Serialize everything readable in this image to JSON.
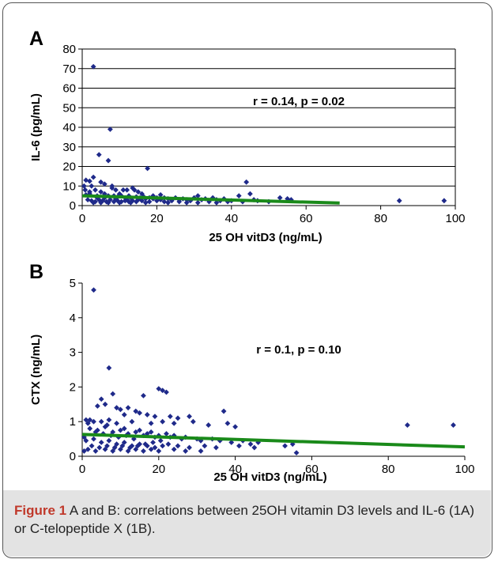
{
  "chart_data": [
    {
      "type": "scatter",
      "panel": "A",
      "xlabel": "25 OH vitD3  (ng/mL)",
      "ylabel": "IL-6 (pg/mL)",
      "xlim": [
        0,
        100
      ],
      "ylim": [
        0,
        80
      ],
      "xticks": [
        0,
        20,
        40,
        60,
        80,
        100
      ],
      "yticks": [
        0,
        10,
        20,
        30,
        40,
        50,
        60,
        70,
        80
      ],
      "grid": "horizontal",
      "annotation": "r = 0.14, p = 0.02",
      "marker_color": "#1f2a8a",
      "trend_color": "#1a8a1a",
      "trendline": {
        "x": [
          0,
          69
        ],
        "y": [
          5,
          1.3
        ]
      },
      "points": [
        [
          3,
          71
        ],
        [
          7.5,
          39
        ],
        [
          4.5,
          26
        ],
        [
          7,
          23
        ],
        [
          17.5,
          19
        ],
        [
          3,
          14.5
        ],
        [
          1,
          13
        ],
        [
          2,
          12.5
        ],
        [
          5,
          12
        ],
        [
          6,
          11
        ],
        [
          44,
          12
        ],
        [
          0.5,
          10
        ],
        [
          2.5,
          10
        ],
        [
          8,
          10
        ],
        [
          13.5,
          9
        ],
        [
          8,
          9
        ],
        [
          11,
          8
        ],
        [
          12,
          8
        ],
        [
          14,
          8
        ],
        [
          3.5,
          8
        ],
        [
          9,
          8
        ],
        [
          5,
          7
        ],
        [
          6,
          6
        ],
        [
          10,
          6
        ],
        [
          15,
          7
        ],
        [
          16,
          6
        ],
        [
          2,
          6
        ],
        [
          1,
          5.5
        ],
        [
          4,
          5
        ],
        [
          7,
          5
        ],
        [
          8.5,
          5
        ],
        [
          9.5,
          4.5
        ],
        [
          10.5,
          5
        ],
        [
          11.5,
          4
        ],
        [
          12.5,
          5
        ],
        [
          13,
          4
        ],
        [
          14.5,
          4.5
        ],
        [
          15.5,
          4
        ],
        [
          16.5,
          4.5
        ],
        [
          17,
          3.5
        ],
        [
          18,
          4
        ],
        [
          19,
          3.5
        ],
        [
          20,
          4
        ],
        [
          21,
          3
        ],
        [
          22,
          4
        ],
        [
          23,
          3.5
        ],
        [
          24,
          3
        ],
        [
          25,
          4
        ],
        [
          26,
          3
        ],
        [
          27,
          3.5
        ],
        [
          28,
          3
        ],
        [
          30,
          4
        ],
        [
          31,
          5
        ],
        [
          32,
          3
        ],
        [
          33,
          3.5
        ],
        [
          35,
          4
        ],
        [
          36,
          3
        ],
        [
          38,
          3.5
        ],
        [
          40,
          2.5
        ],
        [
          42,
          5
        ],
        [
          45,
          6
        ],
        [
          46,
          3
        ],
        [
          53,
          4
        ],
        [
          55,
          3.5
        ],
        [
          56,
          3
        ],
        [
          85,
          2.5
        ],
        [
          97,
          2.5
        ],
        [
          1.5,
          3
        ],
        [
          2.5,
          2.5
        ],
        [
          3.5,
          2
        ],
        [
          4.5,
          3
        ],
        [
          5.5,
          2.5
        ],
        [
          6.5,
          2
        ],
        [
          7.5,
          3
        ],
        [
          8.5,
          2
        ],
        [
          9.5,
          2.5
        ],
        [
          10.5,
          2
        ],
        [
          11.5,
          2.5
        ],
        [
          12.5,
          2
        ],
        [
          13.5,
          2.5
        ],
        [
          14.5,
          2
        ],
        [
          16,
          2.5
        ],
        [
          18,
          2
        ],
        [
          20,
          2.5
        ],
        [
          22,
          2
        ],
        [
          24,
          2.5
        ],
        [
          26,
          2
        ],
        [
          29,
          2.5
        ],
        [
          34,
          2
        ],
        [
          37,
          2.5
        ],
        [
          39,
          2
        ],
        [
          43,
          2
        ],
        [
          47,
          2.5
        ],
        [
          50,
          2
        ],
        [
          6,
          4
        ],
        [
          9,
          3.5
        ],
        [
          12,
          3
        ],
        [
          15,
          3
        ],
        [
          19,
          5
        ],
        [
          21,
          5.5
        ],
        [
          4,
          4
        ],
        [
          0.8,
          8
        ],
        [
          2,
          7
        ],
        [
          3,
          1.5
        ],
        [
          5,
          1.5
        ],
        [
          7,
          1.5
        ],
        [
          10,
          1.5
        ],
        [
          13,
          1.5
        ],
        [
          17,
          1.5
        ],
        [
          23,
          1.5
        ],
        [
          28,
          1.5
        ],
        [
          31,
          1.5
        ],
        [
          36,
          1.5
        ]
      ]
    },
    {
      "type": "scatter",
      "panel": "B",
      "xlabel": "25 OH vitD3  (ng/mL)",
      "ylabel": "CTX (ng/mL)",
      "xlim": [
        0,
        100
      ],
      "ylim": [
        0,
        5
      ],
      "xticks": [
        0,
        20,
        40,
        60,
        80,
        100
      ],
      "yticks": [
        0,
        1,
        2,
        3,
        4,
        5
      ],
      "grid": "none",
      "annotation": "r = 0.1, p = 0.10",
      "marker_color": "#1f2a8a",
      "trend_color": "#1a8a1a",
      "trendline": {
        "x": [
          0,
          100
        ],
        "y": [
          0.63,
          0.27
        ]
      },
      "points": [
        [
          3,
          4.8
        ],
        [
          7,
          2.55
        ],
        [
          20,
          1.95
        ],
        [
          21,
          1.9
        ],
        [
          22,
          1.85
        ],
        [
          8,
          1.8
        ],
        [
          16,
          1.75
        ],
        [
          5,
          1.65
        ],
        [
          6,
          1.5
        ],
        [
          4,
          1.45
        ],
        [
          9,
          1.4
        ],
        [
          10,
          1.35
        ],
        [
          12,
          1.4
        ],
        [
          14,
          1.3
        ],
        [
          37,
          1.3
        ],
        [
          15,
          1.25
        ],
        [
          11,
          1.2
        ],
        [
          17,
          1.2
        ],
        [
          19,
          1.15
        ],
        [
          23,
          1.15
        ],
        [
          25,
          1.1
        ],
        [
          28,
          1.15
        ],
        [
          1,
          1.05
        ],
        [
          2,
          1.05
        ],
        [
          3,
          1.0
        ],
        [
          5,
          1.0
        ],
        [
          7,
          1.05
        ],
        [
          9,
          0.95
        ],
        [
          13,
          1.0
        ],
        [
          18,
          0.95
        ],
        [
          21,
          1.0
        ],
        [
          24,
          0.95
        ],
        [
          29,
          1.0
        ],
        [
          33,
          0.9
        ],
        [
          38,
          0.95
        ],
        [
          40,
          0.85
        ],
        [
          85,
          0.9
        ],
        [
          97,
          0.9
        ],
        [
          2,
          0.8
        ],
        [
          4,
          0.75
        ],
        [
          6,
          0.85
        ],
        [
          8,
          0.7
        ],
        [
          10,
          0.75
        ],
        [
          11,
          0.8
        ],
        [
          12,
          0.65
        ],
        [
          14,
          0.7
        ],
        [
          15,
          0.75
        ],
        [
          16,
          0.6
        ],
        [
          17,
          0.65
        ],
        [
          18,
          0.7
        ],
        [
          19,
          0.55
        ],
        [
          20,
          0.6
        ],
        [
          22,
          0.65
        ],
        [
          23,
          0.55
        ],
        [
          24,
          0.6
        ],
        [
          26,
          0.5
        ],
        [
          27,
          0.55
        ],
        [
          30,
          0.5
        ],
        [
          31,
          0.45
        ],
        [
          34,
          0.5
        ],
        [
          36,
          0.45
        ],
        [
          39,
          0.4
        ],
        [
          42,
          0.45
        ],
        [
          44,
          0.35
        ],
        [
          46,
          0.4
        ],
        [
          0.5,
          0.55
        ],
        [
          1,
          0.45
        ],
        [
          3,
          0.5
        ],
        [
          5,
          0.4
        ],
        [
          7,
          0.45
        ],
        [
          9,
          0.35
        ],
        [
          11,
          0.4
        ],
        [
          13,
          0.3
        ],
        [
          15,
          0.35
        ],
        [
          17,
          0.3
        ],
        [
          19,
          0.25
        ],
        [
          21,
          0.3
        ],
        [
          25,
          0.3
        ],
        [
          28,
          0.25
        ],
        [
          32,
          0.3
        ],
        [
          35,
          0.25
        ],
        [
          41,
          0.3
        ],
        [
          45,
          0.25
        ],
        [
          53,
          0.3
        ],
        [
          55,
          0.35
        ],
        [
          56,
          0.1
        ],
        [
          0.5,
          0.15
        ],
        [
          1.5,
          0.2
        ],
        [
          3.5,
          0.15
        ],
        [
          6,
          0.2
        ],
        [
          8,
          0.15
        ],
        [
          10,
          0.2
        ],
        [
          12,
          0.15
        ],
        [
          14,
          0.2
        ],
        [
          16,
          0.15
        ],
        [
          18,
          0.2
        ],
        [
          20,
          0.15
        ],
        [
          24,
          0.2
        ],
        [
          27,
          0.15
        ],
        [
          31,
          0.15
        ],
        [
          2.5,
          0.3
        ],
        [
          4.5,
          0.25
        ],
        [
          6.5,
          0.3
        ],
        [
          8.5,
          0.25
        ],
        [
          10.5,
          0.3
        ],
        [
          12.5,
          0.25
        ],
        [
          14.5,
          0.3
        ],
        [
          16.5,
          0.35
        ],
        [
          18.5,
          0.4
        ],
        [
          20.5,
          0.45
        ],
        [
          22.5,
          0.35
        ],
        [
          7.5,
          0.6
        ],
        [
          9.5,
          0.55
        ],
        [
          11.5,
          0.6
        ],
        [
          13.5,
          0.5
        ],
        [
          3.5,
          0.7
        ],
        [
          5.5,
          0.65
        ],
        [
          1.5,
          0.95
        ],
        [
          6.5,
          0.9
        ]
      ]
    }
  ],
  "caption": {
    "figure_label": "Figure 1",
    "text": " A and B: correlations between 25OH vitamin D3 levels and IL-6 (1A) or C-telopeptide X (1B)."
  }
}
